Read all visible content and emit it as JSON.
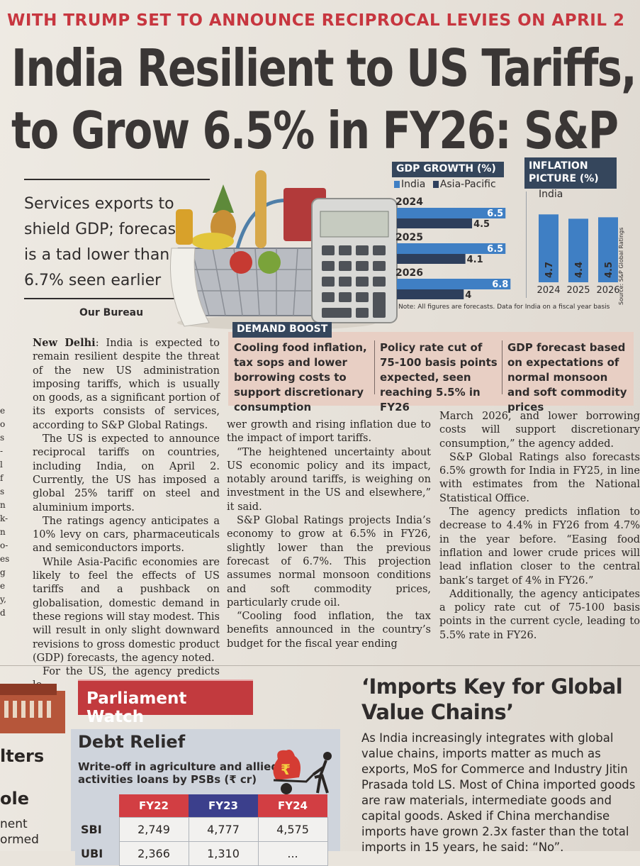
{
  "kicker": "WITH TRUMP SET TO ANNOUNCE RECIPROCAL LEVIES ON APRIL 2",
  "headline": {
    "line1": "India Resilient to US Tariffs,",
    "line2": "to Grow 6.5% in FY26: S&P"
  },
  "deck": "Services exports to shield GDP; forecast is a tad lower than 6.7% seen earlier",
  "byline": "Our Bureau",
  "colors": {
    "accent_red": "#c7363f",
    "navy": "#35465c",
    "bar_blue": "#3f7fc4",
    "bar_dark": "#2e3f5c",
    "banner_red": "#c23a3e",
    "fy22": "#d23e43",
    "fy23": "#3b3f8c",
    "fy24": "#d23e43"
  },
  "gdp_chart": {
    "title": "GDP GROWTH (%)",
    "legend_india": "India",
    "legend_apac": "Asia-Pacific",
    "note": "Note: All figures are forecasts. Data for India on a fiscal year basis"
  },
  "inflation_chart": {
    "title_line1": "INFLATION",
    "title_line2": "PICTURE (%)",
    "subtitle": "India",
    "source": "Source: S&P Global Ratings"
  },
  "chart_data": [
    {
      "type": "bar",
      "title": "GDP GROWTH (%)",
      "categories": [
        "2024",
        "2025",
        "2026"
      ],
      "series": [
        {
          "name": "India",
          "values": [
            6.5,
            6.5,
            6.8
          ]
        },
        {
          "name": "Asia-Pacific",
          "values": [
            4.5,
            4.1,
            4
          ]
        }
      ],
      "value_labels": {
        "India": [
          "6.5",
          "6.5",
          "6.8"
        ],
        "Asia-Pacific": [
          "4.5",
          "4.1",
          "4"
        ]
      },
      "orientation": "horizontal",
      "xlim": [
        0,
        7
      ]
    },
    {
      "type": "bar",
      "title": "INFLATION PICTURE (%)",
      "subtitle": "India",
      "categories": [
        "2024",
        "2025",
        "2026"
      ],
      "values": [
        4.7,
        4.4,
        4.5
      ],
      "value_labels": [
        "4.7",
        "4.4",
        "4.5"
      ],
      "ylim": [
        0,
        5.5
      ]
    }
  ],
  "demand_boost": {
    "title": "DEMAND BOOST",
    "col1": "Cooling food inflation, tax sops and lower borrowing costs to support discretionary consumption",
    "col2": "Policy rate cut of 75-100 basis points expected, seen reaching 5.5% in FY26",
    "col3": "GDP forecast based on expectations of normal monsoon and soft commodity prices"
  },
  "article": {
    "dateline": "New Delhi",
    "p1": ": India is expected to remain resilient despite the threat of the new US administration imposing tariffs, which is usually on goods, as a significant portion of its exports consists of services, according to S&P Global Ratings.",
    "p2": "The US is expected to announce reciprocal tariffs on countries, including India, on April 2. Currently, the US has imposed a global 25% tariff on steel and aluminium imports.",
    "p3": "The ratings agency anticipates a 10% levy on cars, pharmaceuticals and semiconductors imports.",
    "p4": "While Asia-Pacific economies are likely to feel the effects of US tariffs and a pushback on globalisation, domestic demand in these regions will stay modest. This will result in only slight downward revisions to gross domestic product (GDP) forecasts, the agency noted.",
    "p5": "For the US, the agency predicts lo-",
    "p6": "wer growth and rising inflation due to the impact of import tariffs.",
    "p7": "“The heightened uncertainty about US economic policy and its impact, notably around tariffs, is weighing on investment in the US and elsewhere,” it said.",
    "p8": "S&P Global Ratings projects India’s economy to grow at 6.5% in FY26, slightly lower than the previous forecast of 6.7%. This projection assumes normal monsoon conditions and soft commodity prices, particularly crude oil.",
    "p9": "“Cooling food inflation, the tax benefits announced in the country’s budget for the fiscal year ending",
    "p10": "March 2026, and lower borrowing costs will support discretionary consumption,” the agency added.",
    "p11": "S&P Global Ratings also forecasts 6.5% growth for India in FY25, in line with estimates from the National Statistical Office.",
    "p12": "The agency predicts inflation to decrease to 4.4% in FY26 from 4.7% in the year before. “Easing food inflation and lower crude prices will lead inflation closer to the central bank’s target of 4% in FY26.”",
    "p13": "Additionally, the agency anticipates a policy rate cut of 75-100 basis points in the current cycle, leading to 5.5% rate in FY26."
  },
  "gutter": "e\no\ns\n-\nl\nf\ns\nn\nk-\nn\no-\nes\ng\ne\ny,\nd",
  "left_fragments": {
    "f1": "lters",
    "f2": "ole",
    "f3": "nent",
    "f4": "ormed"
  },
  "parliament_watch": {
    "banner": "Parliament Watch",
    "debt_title": "Debt Relief",
    "debt_sub_line1": "Write-off in agriculture and allied",
    "debt_sub_line2": "activities loans by PSBs (₹ cr)",
    "headers": [
      "FY22",
      "FY23",
      "FY24"
    ],
    "rows": [
      {
        "bank": "SBI",
        "values": [
          "2,749",
          "4,777",
          "4,575"
        ]
      },
      {
        "bank": "UBI",
        "values": [
          "2,366",
          "1,310",
          "..."
        ]
      }
    ]
  },
  "imports_story": {
    "headline": "‘Imports Key for Global Value Chains’",
    "body": "As India increasingly integrates with global value chains, imports matter as much as exports, MoS for Commerce and Industry Jitin Prasada told LS. Most of China imported goods are raw materials, intermediate goods and capital goods. Asked if China merchandise imports have grown 2.3x faster than the total imports in 15 years, he said: “No”."
  }
}
